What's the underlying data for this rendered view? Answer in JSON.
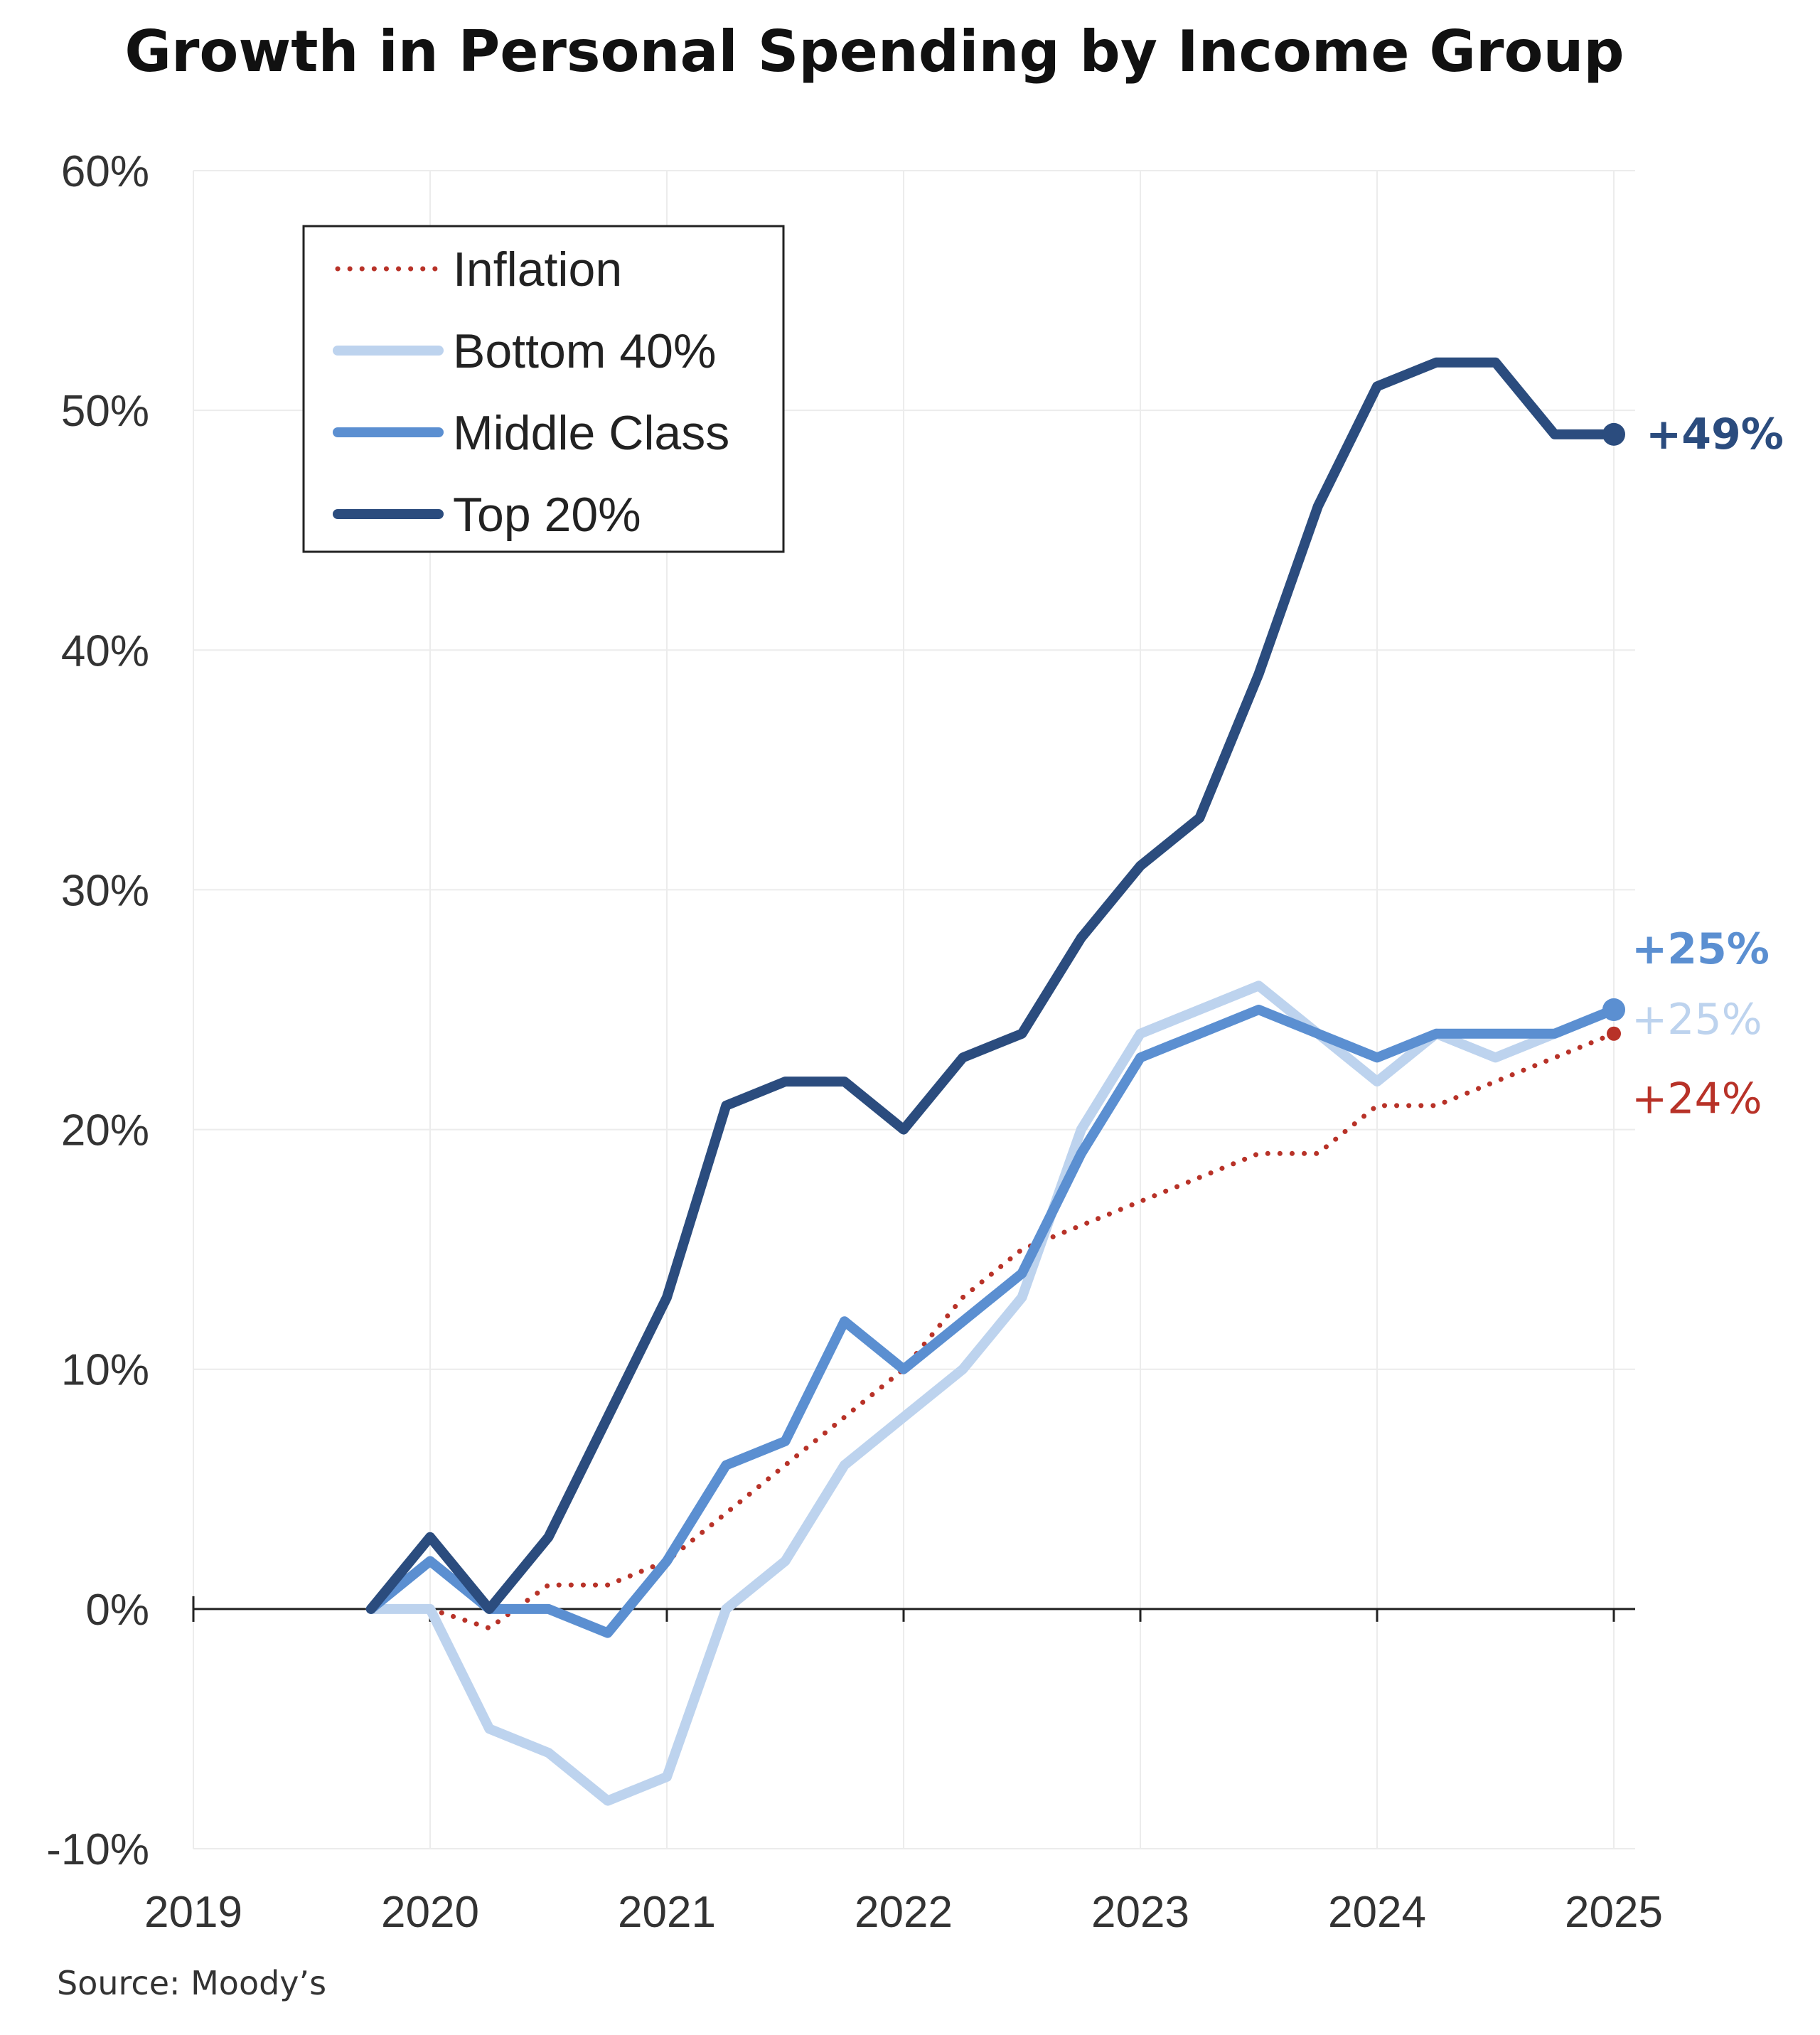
{
  "chart_data": {
    "type": "line",
    "title": "Growth in Personal Spending by Income Group",
    "source": "Source: Moody’s",
    "xlabel": "",
    "ylabel": "",
    "x_ticks": [
      "2019",
      "2020",
      "2021",
      "2022",
      "2023",
      "2024",
      "2025"
    ],
    "y_ticks": [
      "60%",
      "50%",
      "40%",
      "30%",
      "20%",
      "10%",
      "0%",
      "-10%"
    ],
    "ylim": [
      -10,
      60
    ],
    "xlim": [
      2019,
      2025
    ],
    "x": [
      2019.75,
      2020,
      2020.25,
      2020.5,
      2020.75,
      2021,
      2021.25,
      2021.5,
      2021.75,
      2022,
      2022.25,
      2022.5,
      2022.75,
      2023,
      2023.25,
      2023.5,
      2023.75,
      2024,
      2024.25,
      2024.5,
      2024.75,
      2025
    ],
    "legend_position": "top-left",
    "grid": true,
    "series": [
      {
        "name": "Inflation",
        "style": "dotted",
        "color": "#b83228",
        "x": [
          2020,
          2020.25,
          2020.5,
          2020.75,
          2021,
          2021.25,
          2021.5,
          2021.75,
          2022,
          2022.25,
          2022.5,
          2022.75,
          2023,
          2023.25,
          2023.5,
          2023.75,
          2024,
          2024.25,
          2024.5,
          2024.75,
          2025
        ],
        "values": [
          0,
          -0.8,
          1,
          1,
          2,
          4,
          6,
          8,
          10,
          13,
          15,
          16,
          17,
          18,
          19,
          19,
          21,
          21,
          22,
          23,
          24
        ],
        "end_label": "+24%"
      },
      {
        "name": "Bottom 40%",
        "style": "solid",
        "color": "#bdd3ee",
        "x": [
          2019.75,
          2020,
          2020.25,
          2020.5,
          2020.75,
          2021,
          2021.25,
          2021.5,
          2021.75,
          2022,
          2022.25,
          2022.5,
          2022.75,
          2023,
          2023.25,
          2023.5,
          2023.75,
          2024,
          2024.25,
          2024.5,
          2024.75,
          2025
        ],
        "values": [
          0,
          0,
          -5,
          -6,
          -8,
          -7,
          0,
          2,
          6,
          8,
          10,
          13,
          20,
          24,
          25,
          26,
          24,
          22,
          24,
          23,
          24,
          25
        ],
        "end_label": "+25%"
      },
      {
        "name": "Middle Class",
        "style": "solid",
        "color": "#5b8fd1",
        "x": [
          2019.75,
          2020,
          2020.25,
          2020.5,
          2020.75,
          2021,
          2021.25,
          2021.5,
          2021.75,
          2022,
          2022.25,
          2022.5,
          2022.75,
          2023,
          2023.25,
          2023.5,
          2023.75,
          2024,
          2024.25,
          2024.5,
          2024.75,
          2025
        ],
        "values": [
          0,
          2,
          0,
          0,
          -1,
          2,
          6,
          7,
          12,
          10,
          12,
          14,
          19,
          23,
          24,
          25,
          24,
          23,
          24,
          24,
          24,
          25
        ],
        "end_label": "+25%"
      },
      {
        "name": "Top 20%",
        "style": "solid",
        "color": "#2b4c7e",
        "x": [
          2019.75,
          2020,
          2020.25,
          2020.5,
          2020.75,
          2021,
          2021.25,
          2021.5,
          2021.75,
          2022,
          2022.25,
          2022.5,
          2022.75,
          2023,
          2023.25,
          2023.5,
          2023.75,
          2024,
          2024.25,
          2024.5,
          2024.75,
          2025
        ],
        "values": [
          0,
          3,
          0,
          3,
          8,
          13,
          21,
          22,
          22,
          20,
          23,
          24,
          28,
          31,
          33,
          39,
          46,
          51,
          52,
          52,
          49,
          49
        ],
        "end_label": "+49%"
      }
    ]
  }
}
